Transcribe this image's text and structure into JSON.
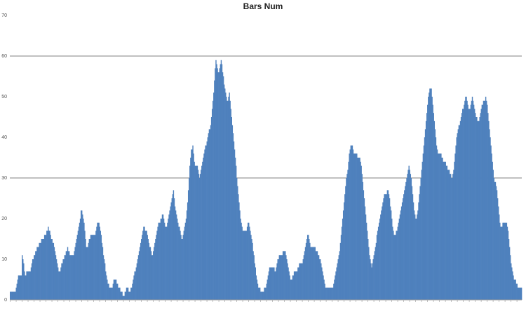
{
  "chart_data": {
    "type": "bar",
    "title": "Bars Num",
    "ylim": [
      0,
      70
    ],
    "yticks": [
      0,
      10,
      20,
      30,
      40,
      50,
      60,
      70
    ],
    "grid_lines_at": [
      30,
      60
    ],
    "bar_color": "#4f81bd",
    "gridline_color": "#808080",
    "values": [
      2,
      2,
      2,
      2,
      2,
      2,
      2,
      2,
      3,
      4,
      5,
      6,
      6,
      6,
      6,
      6,
      11,
      10,
      9,
      7,
      6,
      6,
      7,
      7,
      7,
      7,
      7,
      7,
      8,
      9,
      10,
      10,
      11,
      11,
      12,
      12,
      13,
      13,
      13,
      14,
      14,
      14,
      15,
      15,
      15,
      15,
      16,
      16,
      16,
      17,
      17,
      18,
      17,
      17,
      16,
      15,
      15,
      14,
      14,
      13,
      12,
      11,
      10,
      9,
      8,
      7,
      7,
      7,
      8,
      9,
      9,
      10,
      10,
      11,
      11,
      12,
      12,
      13,
      12,
      12,
      11,
      11,
      11,
      11,
      11,
      11,
      12,
      13,
      14,
      15,
      16,
      17,
      18,
      19,
      20,
      22,
      22,
      21,
      20,
      19,
      17,
      15,
      13,
      13,
      13,
      14,
      15,
      15,
      16,
      16,
      16,
      16,
      16,
      16,
      16,
      17,
      18,
      19,
      19,
      19,
      18,
      17,
      16,
      14,
      13,
      11,
      10,
      9,
      7,
      6,
      5,
      4,
      4,
      3,
      3,
      3,
      3,
      3,
      4,
      5,
      5,
      5,
      5,
      4,
      4,
      3,
      3,
      3,
      2,
      2,
      2,
      1,
      1,
      1,
      2,
      2,
      3,
      3,
      3,
      2,
      2,
      2,
      3,
      3,
      4,
      5,
      6,
      7,
      7,
      8,
      9,
      10,
      11,
      12,
      13,
      14,
      15,
      16,
      17,
      18,
      18,
      17,
      17,
      17,
      16,
      15,
      14,
      13,
      13,
      12,
      11,
      11,
      12,
      13,
      14,
      15,
      16,
      17,
      18,
      19,
      19,
      19,
      20,
      20,
      21,
      21,
      20,
      19,
      18,
      18,
      18,
      19,
      20,
      21,
      22,
      23,
      24,
      25,
      26,
      27,
      25,
      23,
      22,
      21,
      20,
      19,
      18,
      18,
      17,
      16,
      15,
      15,
      16,
      17,
      18,
      19,
      20,
      22,
      24,
      27,
      30,
      33,
      35,
      37,
      37,
      38,
      36,
      34,
      33,
      33,
      33,
      33,
      32,
      31,
      30,
      31,
      32,
      33,
      34,
      35,
      36,
      37,
      38,
      38,
      39,
      40,
      41,
      42,
      42,
      43,
      45,
      47,
      49,
      51,
      54,
      57,
      59,
      58,
      57,
      56,
      56,
      57,
      58,
      59,
      58,
      56,
      55,
      53,
      52,
      51,
      50,
      49,
      49,
      50,
      51,
      49,
      47,
      45,
      43,
      41,
      39,
      37,
      35,
      33,
      30,
      28,
      26,
      24,
      22,
      20,
      19,
      18,
      17,
      17,
      17,
      17,
      17,
      17,
      18,
      19,
      19,
      18,
      17,
      16,
      15,
      14,
      12,
      11,
      9,
      8,
      6,
      5,
      4,
      3,
      3,
      3,
      2,
      2,
      2,
      2,
      2,
      3,
      3,
      3,
      4,
      5,
      6,
      7,
      8,
      8,
      8,
      8,
      8,
      8,
      8,
      7,
      7,
      8,
      9,
      10,
      10,
      11,
      11,
      11,
      11,
      11,
      12,
      12,
      12,
      12,
      11,
      10,
      9,
      8,
      7,
      6,
      5,
      5,
      5,
      6,
      6,
      7,
      7,
      7,
      7,
      7,
      8,
      8,
      9,
      9,
      9,
      9,
      9,
      10,
      11,
      12,
      13,
      14,
      15,
      16,
      16,
      15,
      14,
      13,
      13,
      13,
      13,
      13,
      13,
      13,
      12,
      12,
      12,
      11,
      11,
      10,
      10,
      9,
      8,
      7,
      6,
      5,
      4,
      3,
      3,
      3,
      3,
      3,
      3,
      3,
      3,
      3,
      3,
      3,
      4,
      5,
      6,
      7,
      8,
      9,
      10,
      11,
      12,
      14,
      16,
      18,
      20,
      22,
      24,
      26,
      28,
      30,
      31,
      32,
      34,
      36,
      37,
      38,
      38,
      38,
      37,
      36,
      36,
      36,
      36,
      36,
      35,
      35,
      35,
      35,
      34,
      33,
      31,
      29,
      27,
      25,
      23,
      21,
      19,
      17,
      15,
      13,
      11,
      10,
      9,
      8,
      9,
      10,
      11,
      12,
      13,
      14,
      16,
      17,
      18,
      19,
      20,
      21,
      22,
      23,
      24,
      25,
      26,
      26,
      26,
      26,
      27,
      27,
      26,
      25,
      23,
      22,
      20,
      18,
      17,
      16,
      16,
      16,
      17,
      17,
      18,
      19,
      20,
      21,
      22,
      23,
      24,
      25,
      26,
      27,
      28,
      29,
      30,
      31,
      32,
      33,
      32,
      31,
      30,
      28,
      26,
      24,
      22,
      21,
      20,
      20,
      21,
      22,
      24,
      26,
      28,
      30,
      32,
      34,
      36,
      38,
      40,
      42,
      44,
      46,
      48,
      50,
      51,
      52,
      52,
      52,
      50,
      48,
      46,
      44,
      42,
      40,
      38,
      37,
      36,
      36,
      36,
      36,
      36,
      35,
      35,
      34,
      34,
      34,
      34,
      33,
      33,
      32,
      32,
      32,
      31,
      31,
      30,
      30,
      31,
      32,
      34,
      36,
      38,
      40,
      41,
      42,
      43,
      43,
      44,
      45,
      46,
      47,
      47,
      48,
      49,
      50,
      50,
      49,
      48,
      47,
      47,
      47,
      48,
      49,
      50,
      49,
      48,
      47,
      46,
      45,
      45,
      44,
      44,
      44,
      45,
      46,
      47,
      48,
      48,
      49,
      49,
      49,
      50,
      49,
      48,
      46,
      44,
      42,
      40,
      38,
      36,
      34,
      32,
      30,
      29,
      29,
      28,
      27,
      25,
      23,
      21,
      19,
      18,
      18,
      18,
      19,
      19,
      19,
      19,
      19,
      19,
      18,
      17,
      15,
      13,
      11,
      9,
      8,
      7,
      6,
      5,
      5,
      5,
      4,
      4,
      3,
      3,
      3,
      3,
      3,
      3
    ]
  }
}
